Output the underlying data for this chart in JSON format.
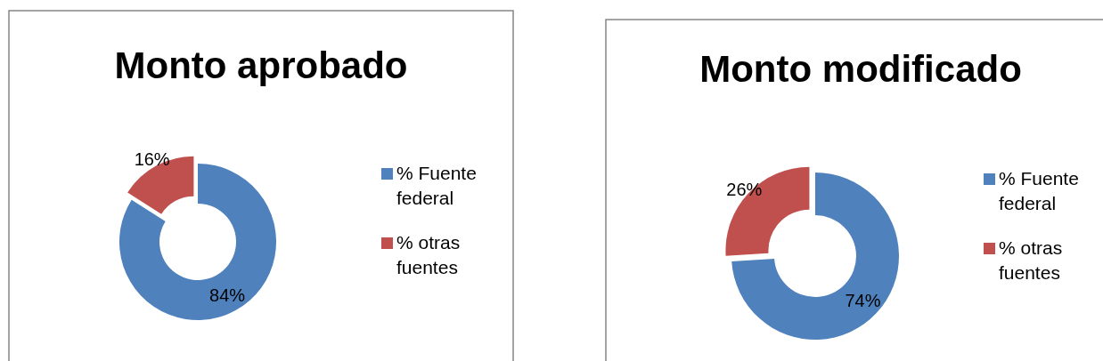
{
  "chart_data": [
    {
      "type": "donut",
      "title": "Monto aprobado",
      "categories": [
        "% Fuente federal",
        "% otras fuentes"
      ],
      "values": [
        84,
        16
      ],
      "colors": [
        "#4f81bd",
        "#c0504d"
      ],
      "value_labels": [
        "84%",
        "16%"
      ],
      "legend": "right"
    },
    {
      "type": "donut",
      "title": "Monto modificado",
      "categories": [
        "% Fuente federal",
        "% otras fuentes"
      ],
      "values": [
        74,
        26
      ],
      "colors": [
        "#4f81bd",
        "#c0504d"
      ],
      "value_labels": [
        "74%",
        "26%"
      ],
      "legend": "right"
    }
  ]
}
